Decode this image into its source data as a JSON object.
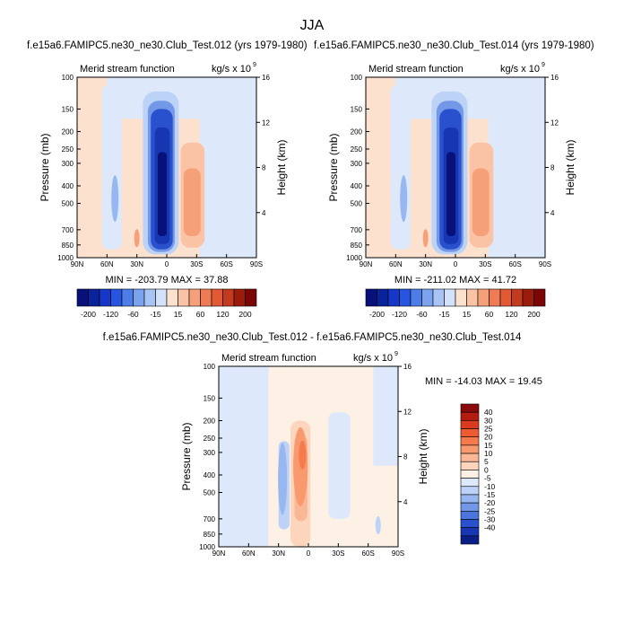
{
  "figure": {
    "title": "JJA"
  },
  "chart_data": [
    {
      "type": "heatmap",
      "title": "f.e15a6.FAMIPC5.ne30_ne30.Club_Test.012 (yrs 1979-1980)",
      "subtitle": "Merid stream function",
      "units": "kg/s x 10",
      "units_exp": "9",
      "ylabel": "Pressure (mb)",
      "ylabel_right": "Height (km)",
      "x_ticks": [
        "90N",
        "60N",
        "30N",
        "0",
        "30S",
        "60S",
        "90S"
      ],
      "x_values": [
        90,
        60,
        30,
        0,
        -30,
        -60,
        -90
      ],
      "y_ticks": [
        "100",
        "150",
        "200",
        "250",
        "300",
        "400",
        "500",
        "700",
        "850",
        "1000"
      ],
      "y_values": [
        100,
        150,
        200,
        250,
        300,
        400,
        500,
        700,
        850,
        1000
      ],
      "y_right_ticks": [
        "16",
        "12",
        "8",
        "4"
      ],
      "y_right_values": [
        16,
        12,
        8,
        4
      ],
      "stats": "MIN = -203.79   MAX =  37.88",
      "min": -203.79,
      "max": 37.88,
      "features": [
        {
          "lat": 0,
          "p": 450,
          "value": -200,
          "desc": "deep negative cell"
        },
        {
          "lat": -20,
          "p": 450,
          "value": 35,
          "desc": "positive cell"
        },
        {
          "lat": 52,
          "p": 450,
          "value": -25,
          "desc": "weak negative cell"
        }
      ]
    },
    {
      "type": "heatmap",
      "title": "f.e15a6.FAMIPC5.ne30_ne30.Club_Test.014 (yrs 1979-1980)",
      "subtitle": "Merid stream function",
      "units": "kg/s x 10",
      "units_exp": "9",
      "ylabel": "Pressure (mb)",
      "ylabel_right": "Height (km)",
      "x_ticks": [
        "90N",
        "60N",
        "30N",
        "0",
        "30S",
        "60S",
        "90S"
      ],
      "x_values": [
        90,
        60,
        30,
        0,
        -30,
        -60,
        -90
      ],
      "y_ticks": [
        "100",
        "150",
        "200",
        "250",
        "300",
        "400",
        "500",
        "700",
        "850",
        "1000"
      ],
      "y_values": [
        100,
        150,
        200,
        250,
        300,
        400,
        500,
        700,
        850,
        1000
      ],
      "y_right_ticks": [
        "16",
        "12",
        "8",
        "4"
      ],
      "y_right_values": [
        16,
        12,
        8,
        4
      ],
      "stats": "MIN = -211.02   MAX =  41.72",
      "min": -211.02,
      "max": 41.72,
      "features": [
        {
          "lat": 0,
          "p": 450,
          "value": -210,
          "desc": "deep negative cell"
        },
        {
          "lat": -20,
          "p": 450,
          "value": 40,
          "desc": "positive cell"
        },
        {
          "lat": 52,
          "p": 450,
          "value": -30,
          "desc": "weak negative cell"
        }
      ]
    },
    {
      "type": "heatmap",
      "title": "f.e15a6.FAMIPC5.ne30_ne30.Club_Test.012 - f.e15a6.FAMIPC5.ne30_ne30.Club_Test.014",
      "subtitle": "Merid stream function",
      "units": "kg/s x 10",
      "units_exp": "9",
      "ylabel": "Pressure (mb)",
      "ylabel_right": "Height (km)",
      "x_ticks": [
        "90N",
        "60N",
        "30N",
        "0",
        "30S",
        "60S",
        "90S"
      ],
      "x_values": [
        90,
        60,
        30,
        0,
        -30,
        -60,
        -90
      ],
      "y_ticks": [
        "100",
        "150",
        "200",
        "250",
        "300",
        "400",
        "500",
        "700",
        "850",
        "1000"
      ],
      "y_values": [
        100,
        150,
        200,
        250,
        300,
        400,
        500,
        700,
        850,
        1000
      ],
      "y_right_ticks": [
        "16",
        "12",
        "8",
        "4"
      ],
      "y_right_values": [
        16,
        12,
        8,
        4
      ],
      "stats": "MIN = -14.03   MAX =  19.45",
      "min": -14.03,
      "max": 19.45,
      "features": [
        {
          "lat": 8,
          "p": 350,
          "value": 19,
          "desc": "positive anomaly"
        },
        {
          "lat": 25,
          "p": 450,
          "value": -12,
          "desc": "negative anomaly"
        }
      ]
    }
  ],
  "colorbar_top": {
    "orientation": "horizontal",
    "labels": [
      "-200",
      "-120",
      "-60",
      "-15",
      "15",
      "60",
      "120",
      "200"
    ],
    "colors": [
      "#08107a",
      "#0a239c",
      "#1637c8",
      "#2855e0",
      "#4f7de8",
      "#7ba2ee",
      "#a7c4f4",
      "#d3e1fa",
      "#fde1cf",
      "#fbc3a5",
      "#f6a07a",
      "#ef7b56",
      "#e15a35",
      "#c43a1e",
      "#9c1c0c",
      "#7a0606"
    ]
  },
  "colorbar_diff": {
    "orientation": "vertical",
    "labels": [
      "40",
      "30",
      "25",
      "20",
      "15",
      "10",
      "5",
      "0",
      "-5",
      "-10",
      "-15",
      "-20",
      "-25",
      "-30",
      "-40"
    ],
    "colors": [
      "#8a0b0b",
      "#b51c10",
      "#da3b1e",
      "#ee5a32",
      "#f57a4d",
      "#f8996e",
      "#fab795",
      "#fcd5bc",
      "#fdf0e4",
      "#dde9fb",
      "#bcd2f6",
      "#98b7f0",
      "#7498e8",
      "#4c75de",
      "#2a51cd",
      "#1637b1",
      "#0a1e86"
    ]
  }
}
